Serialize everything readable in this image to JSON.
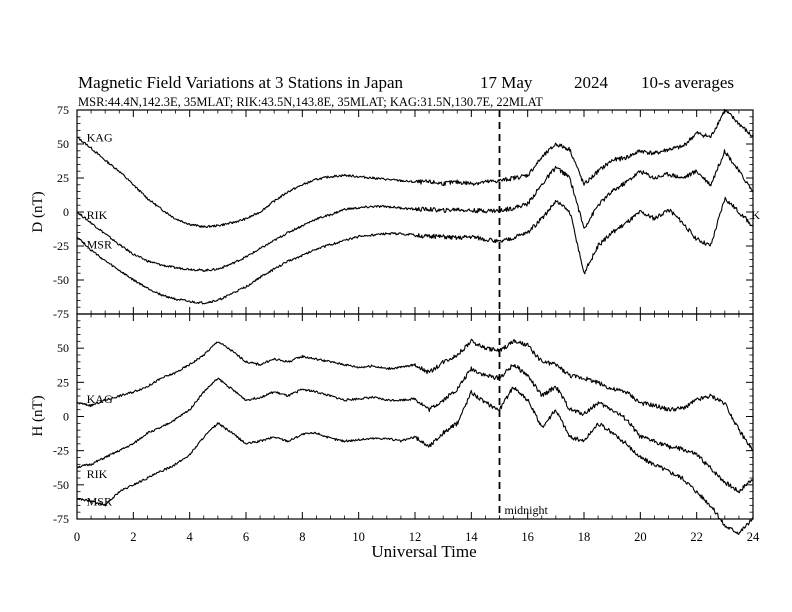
{
  "header": {
    "title": "Magnetic Field Variations at 3 Stations in Japan",
    "date": "17 May",
    "year": "2024",
    "averaging": "10-s averages",
    "stations_line": "MSR:44.4N,142.3E, 35MLAT;  RIK:43.5N,143.8E, 35MLAT;  KAG:31.5N,130.7E, 22MLAT"
  },
  "colors": {
    "line": "#000000",
    "background": "#ffffff"
  },
  "chart_data": [
    {
      "type": "line",
      "panel": "D",
      "ylabel": "D (nT)",
      "xlabel": "Universal Time",
      "xlim": [
        0,
        24
      ],
      "ylim": [
        -75,
        75
      ],
      "yticks": [
        -75,
        -50,
        -25,
        0,
        25,
        50,
        75
      ],
      "xticks": [
        0,
        2,
        4,
        6,
        8,
        10,
        12,
        14,
        16,
        18,
        20,
        22,
        24
      ],
      "grid": false,
      "marker_line": {
        "x": 15,
        "style": "dashed",
        "label": "midnight"
      },
      "series": [
        {
          "name": "KAG",
          "x": [
            0,
            0.5,
            1,
            1.5,
            2,
            2.5,
            3,
            3.5,
            4,
            4.5,
            5,
            5.5,
            6,
            6.5,
            7,
            7.5,
            8,
            8.5,
            9,
            9.5,
            10,
            10.5,
            11,
            11.5,
            12,
            12.5,
            13,
            13.5,
            14,
            14.5,
            15,
            15.5,
            16,
            16.5,
            17,
            17.5,
            18,
            18.5,
            19,
            19.5,
            20,
            20.5,
            21,
            21.5,
            22,
            22.5,
            23,
            23.5,
            24
          ],
          "y": [
            55,
            47,
            38,
            30,
            20,
            10,
            2,
            -5,
            -9,
            -11,
            -10,
            -8,
            -5,
            0,
            8,
            15,
            20,
            24,
            26,
            27,
            26,
            25,
            24,
            23,
            22,
            22,
            21,
            22,
            21,
            22,
            23,
            25,
            27,
            40,
            50,
            46,
            20,
            30,
            38,
            40,
            45,
            43,
            46,
            48,
            58,
            55,
            75,
            65,
            55
          ]
        },
        {
          "name": "RIK",
          "x": [
            0,
            0.5,
            1,
            1.5,
            2,
            2.5,
            3,
            3.5,
            4,
            4.5,
            5,
            5.5,
            6,
            6.5,
            7,
            7.5,
            8,
            8.5,
            9,
            9.5,
            10,
            10.5,
            11,
            11.5,
            12,
            12.5,
            13,
            13.5,
            14,
            14.5,
            15,
            15.5,
            16,
            16.5,
            17,
            17.5,
            18,
            18.5,
            19,
            19.5,
            20,
            20.5,
            21,
            21.5,
            22,
            22.5,
            23,
            23.5,
            24
          ],
          "y": [
            0,
            -8,
            -16,
            -24,
            -31,
            -36,
            -39,
            -41,
            -42,
            -43,
            -42,
            -38,
            -33,
            -27,
            -21,
            -15,
            -10,
            -5,
            -2,
            2,
            3,
            4,
            4,
            3,
            2,
            2,
            1,
            2,
            1,
            1,
            1,
            3,
            6,
            20,
            33,
            25,
            -12,
            5,
            15,
            22,
            30,
            25,
            28,
            25,
            30,
            20,
            45,
            30,
            15
          ]
        },
        {
          "name": "MSR",
          "x": [
            0,
            0.5,
            1,
            1.5,
            2,
            2.5,
            3,
            3.5,
            4,
            4.5,
            5,
            5.5,
            6,
            6.5,
            7,
            7.5,
            8,
            8.5,
            9,
            9.5,
            10,
            10.5,
            11,
            11.5,
            12,
            12.5,
            13,
            13.5,
            14,
            14.5,
            15,
            15.5,
            16,
            16.5,
            17,
            17.5,
            18,
            18.5,
            19,
            19.5,
            20,
            20.5,
            21,
            21.5,
            22,
            22.5,
            23,
            23.5,
            24
          ],
          "y": [
            -18,
            -28,
            -36,
            -43,
            -50,
            -56,
            -61,
            -64,
            -66,
            -67,
            -65,
            -60,
            -55,
            -48,
            -42,
            -36,
            -32,
            -27,
            -24,
            -21,
            -18,
            -17,
            -16,
            -16,
            -17,
            -18,
            -18,
            -19,
            -18,
            -20,
            -22,
            -19,
            -15,
            -5,
            8,
            0,
            -45,
            -25,
            -15,
            -8,
            0,
            -5,
            2,
            -8,
            -20,
            -25,
            10,
            0,
            -10
          ]
        }
      ],
      "series_labels": [
        {
          "text": "KAG",
          "x": 0.2,
          "y": 52
        },
        {
          "text": "RIK",
          "x": 0.2,
          "y": -5
        },
        {
          "text": "MSR",
          "x": 0.2,
          "y": -27
        },
        {
          "text": "K",
          "x": 23.8,
          "y": -5
        }
      ]
    },
    {
      "type": "line",
      "panel": "H",
      "ylabel": "H (nT)",
      "xlabel": "Universal Time",
      "xlim": [
        0,
        24
      ],
      "ylim": [
        -75,
        75
      ],
      "yticks": [
        -75,
        -50,
        -25,
        0,
        25,
        50
      ],
      "xticks": [
        0,
        2,
        4,
        6,
        8,
        10,
        12,
        14,
        16,
        18,
        20,
        22,
        24
      ],
      "grid": false,
      "marker_line": {
        "x": 15,
        "style": "dashed",
        "label": "midnight"
      },
      "series": [
        {
          "name": "KAG",
          "x": [
            0,
            0.5,
            1,
            1.5,
            2,
            2.5,
            3,
            3.5,
            4,
            4.5,
            5,
            5.5,
            6,
            6.5,
            7,
            7.5,
            8,
            8.5,
            9,
            9.5,
            10,
            10.5,
            11,
            11.5,
            12,
            12.5,
            13,
            13.5,
            14,
            14.5,
            15,
            15.5,
            16,
            16.5,
            17,
            17.5,
            18,
            18.5,
            19,
            19.5,
            20,
            20.5,
            21,
            21.5,
            22,
            22.5,
            23,
            23.5,
            24
          ],
          "y": [
            10,
            8,
            12,
            15,
            18,
            22,
            28,
            32,
            38,
            45,
            55,
            48,
            40,
            38,
            42,
            40,
            44,
            42,
            40,
            38,
            36,
            37,
            35,
            36,
            38,
            32,
            40,
            45,
            55,
            50,
            48,
            55,
            52,
            40,
            38,
            30,
            28,
            25,
            20,
            18,
            10,
            8,
            5,
            6,
            12,
            15,
            10,
            -10,
            -25
          ]
        },
        {
          "name": "RIK",
          "x": [
            0,
            0.5,
            1,
            1.5,
            2,
            2.5,
            3,
            3.5,
            4,
            4.5,
            5,
            5.5,
            6,
            6.5,
            7,
            7.5,
            8,
            8.5,
            9,
            9.5,
            10,
            10.5,
            11,
            11.5,
            12,
            12.5,
            13,
            13.5,
            14,
            14.5,
            15,
            15.5,
            16,
            16.5,
            17,
            17.5,
            18,
            18.5,
            19,
            19.5,
            20,
            20.5,
            21,
            21.5,
            22,
            22.5,
            23,
            23.5,
            24
          ],
          "y": [
            -37,
            -35,
            -30,
            -25,
            -20,
            -12,
            -8,
            -2,
            5,
            18,
            28,
            20,
            12,
            14,
            18,
            15,
            20,
            18,
            15,
            12,
            13,
            14,
            12,
            12,
            13,
            5,
            12,
            20,
            35,
            30,
            28,
            38,
            30,
            15,
            22,
            5,
            2,
            10,
            5,
            -2,
            -15,
            -18,
            -22,
            -24,
            -28,
            -38,
            -48,
            -55,
            -45
          ]
        },
        {
          "name": "MSR",
          "x": [
            0,
            0.5,
            1,
            1.5,
            2,
            2.5,
            3,
            3.5,
            4,
            4.5,
            5,
            5.5,
            6,
            6.5,
            7,
            7.5,
            8,
            8.5,
            9,
            9.5,
            10,
            10.5,
            11,
            11.5,
            12,
            12.5,
            13,
            13.5,
            14,
            14.5,
            15,
            15.5,
            16,
            16.5,
            17,
            17.5,
            18,
            18.5,
            19,
            19.5,
            20,
            20.5,
            21,
            21.5,
            22,
            22.5,
            23,
            23.5,
            24
          ],
          "y": [
            -60,
            -62,
            -65,
            -55,
            -50,
            -45,
            -40,
            -35,
            -28,
            -15,
            -5,
            -12,
            -20,
            -18,
            -15,
            -18,
            -13,
            -12,
            -16,
            -18,
            -17,
            -16,
            -16,
            -18,
            -15,
            -22,
            -12,
            -5,
            18,
            10,
            5,
            22,
            12,
            -8,
            5,
            -15,
            -18,
            -5,
            -12,
            -20,
            -30,
            -35,
            -40,
            -45,
            -55,
            -65,
            -80,
            -85,
            -75
          ]
        }
      ],
      "series_labels": [
        {
          "text": "KAG",
          "x": 0.2,
          "y": 10
        },
        {
          "text": "RIK",
          "x": 0.2,
          "y": -45
        },
        {
          "text": "MSR",
          "x": 0.2,
          "y": -65
        }
      ]
    }
  ]
}
